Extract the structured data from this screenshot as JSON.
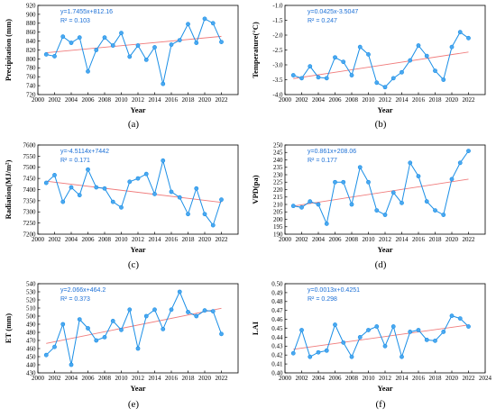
{
  "colors": {
    "series": "#1b8fe6",
    "marker_fill": "#4aa8f0",
    "trend": "#f07c7c",
    "equation": "#1b6fd6"
  },
  "chart_data": [
    {
      "type": "line",
      "panel": "(a)",
      "xlabel": "Year",
      "ylabel": "Precipitation (mm)",
      "xlim": [
        2000,
        2024
      ],
      "ylim": [
        720,
        920
      ],
      "x_ticks": [
        2000,
        2002,
        2004,
        2006,
        2008,
        2010,
        2012,
        2014,
        2016,
        2018,
        2020,
        2022
      ],
      "y_ticks": [
        720,
        740,
        760,
        780,
        800,
        820,
        840,
        860,
        880,
        900,
        920
      ],
      "equation": "y=1.7455x+812.16",
      "r2": "R² = 0.103",
      "trend": {
        "slope": 1.7455,
        "intercept": 812.16
      },
      "x": [
        2001,
        2002,
        2003,
        2004,
        2005,
        2006,
        2007,
        2008,
        2009,
        2010,
        2011,
        2012,
        2013,
        2014,
        2015,
        2016,
        2017,
        2018,
        2019,
        2020,
        2021,
        2022
      ],
      "values": [
        810,
        806,
        850,
        836,
        848,
        772,
        820,
        848,
        830,
        858,
        805,
        830,
        798,
        826,
        744,
        832,
        842,
        878,
        836,
        890,
        880,
        838
      ]
    },
    {
      "type": "line",
      "panel": "(b)",
      "xlabel": "Year",
      "ylabel": "Temperature(°C)",
      "xlim": [
        2000,
        2024
      ],
      "ylim": [
        -4.0,
        -1.0
      ],
      "x_ticks": [
        2000,
        2002,
        2004,
        2006,
        2008,
        2010,
        2012,
        2014,
        2016,
        2018,
        2020,
        2022
      ],
      "y_ticks": [
        -4.0,
        -3.5,
        -3.0,
        -2.5,
        -2.0,
        -1.5,
        -1.0
      ],
      "equation": "y=0.0425x-3.5047",
      "r2": "R² = 0.247",
      "trend": {
        "slope": 0.0425,
        "intercept": -3.5047
      },
      "x": [
        2001,
        2002,
        2003,
        2004,
        2005,
        2006,
        2007,
        2008,
        2009,
        2010,
        2011,
        2012,
        2013,
        2014,
        2015,
        2016,
        2017,
        2018,
        2019,
        2020,
        2021,
        2022
      ],
      "values": [
        -3.35,
        -3.45,
        -3.05,
        -3.42,
        -3.45,
        -2.75,
        -2.9,
        -3.35,
        -2.4,
        -2.65,
        -3.6,
        -3.75,
        -3.45,
        -3.25,
        -2.85,
        -2.35,
        -2.7,
        -3.2,
        -3.5,
        -2.4,
        -1.9,
        -2.1
      ]
    },
    {
      "type": "line",
      "panel": "(c)",
      "xlabel": "Year",
      "ylabel": "Radiation(MJ/m²)",
      "xlim": [
        2000,
        2024
      ],
      "ylim": [
        7200,
        7600
      ],
      "x_ticks": [
        2000,
        2002,
        2004,
        2006,
        2008,
        2010,
        2012,
        2014,
        2016,
        2018,
        2020,
        2022
      ],
      "y_ticks": [
        7200,
        7250,
        7300,
        7350,
        7400,
        7450,
        7500,
        7550,
        7600
      ],
      "equation": "y=-4.5114x+7442",
      "r2": "R² = 0.171",
      "trend": {
        "slope": -4.5114,
        "intercept": 7442
      },
      "x": [
        2001,
        2002,
        2003,
        2004,
        2005,
        2006,
        2007,
        2008,
        2009,
        2010,
        2011,
        2012,
        2013,
        2014,
        2015,
        2016,
        2017,
        2018,
        2019,
        2020,
        2021,
        2022
      ],
      "values": [
        7430,
        7465,
        7345,
        7410,
        7375,
        7490,
        7410,
        7405,
        7345,
        7320,
        7435,
        7450,
        7470,
        7380,
        7530,
        7390,
        7365,
        7290,
        7405,
        7290,
        7240,
        7355
      ]
    },
    {
      "type": "line",
      "panel": "(d)",
      "xlabel": "Year",
      "ylabel": "VPD(pa)",
      "xlim": [
        2000,
        2024
      ],
      "ylim": [
        190,
        250
      ],
      "x_ticks": [
        2000,
        2002,
        2004,
        2006,
        2008,
        2010,
        2012,
        2014,
        2016,
        2018,
        2020,
        2022
      ],
      "y_ticks": [
        190,
        195,
        200,
        205,
        210,
        215,
        220,
        225,
        230,
        235,
        240,
        245,
        250
      ],
      "equation": "y=0.861x+208.06",
      "r2": "R² = 0.177",
      "trend": {
        "slope": 0.861,
        "intercept": 208.06
      },
      "x": [
        2001,
        2002,
        2003,
        2004,
        2005,
        2006,
        2007,
        2008,
        2009,
        2010,
        2011,
        2012,
        2013,
        2014,
        2015,
        2016,
        2017,
        2018,
        2019,
        2020,
        2021,
        2022
      ],
      "values": [
        209,
        208,
        212,
        210,
        197,
        225,
        225,
        210,
        235,
        225,
        206,
        203,
        218,
        211,
        238,
        229,
        212,
        206,
        203,
        227,
        238,
        246
      ]
    },
    {
      "type": "line",
      "panel": "(e)",
      "xlabel": "Year",
      "ylabel": "ET (mm)",
      "xlim": [
        2000,
        2024
      ],
      "ylim": [
        430,
        540
      ],
      "x_ticks": [
        2000,
        2002,
        2004,
        2006,
        2008,
        2010,
        2012,
        2014,
        2016,
        2018,
        2020,
        2022
      ],
      "y_ticks": [
        430,
        440,
        450,
        460,
        470,
        480,
        490,
        500,
        510,
        520,
        530,
        540
      ],
      "equation": "y=2.066x+464.2",
      "r2": "R² = 0.373",
      "trend": {
        "slope": 2.066,
        "intercept": 464.2
      },
      "x": [
        2001,
        2002,
        2003,
        2004,
        2005,
        2006,
        2007,
        2008,
        2009,
        2010,
        2011,
        2012,
        2013,
        2014,
        2015,
        2016,
        2017,
        2018,
        2019,
        2020,
        2021,
        2022
      ],
      "values": [
        452,
        462,
        490,
        440,
        496,
        485,
        470,
        474,
        494,
        483,
        508,
        460,
        500,
        508,
        484,
        508,
        530,
        505,
        500,
        507,
        506,
        478
      ]
    },
    {
      "type": "line",
      "panel": "(f)",
      "xlabel": "Year",
      "ylabel": "LAI",
      "xlim": [
        2000,
        2024
      ],
      "ylim": [
        0.4,
        0.5
      ],
      "x_ticks": [
        2000,
        2002,
        2004,
        2006,
        2008,
        2010,
        2012,
        2014,
        2016,
        2018,
        2020,
        2022,
        2024
      ],
      "y_ticks": [
        0.4,
        0.41,
        0.42,
        0.43,
        0.44,
        0.45,
        0.46,
        0.47,
        0.48,
        0.49,
        0.5
      ],
      "equation": "y=0.0013x+0.4251",
      "r2": "R² = 0.298",
      "trend": {
        "slope": 0.0013,
        "intercept": 0.4251
      },
      "x": [
        2001,
        2002,
        2003,
        2004,
        2005,
        2006,
        2007,
        2008,
        2009,
        2010,
        2011,
        2012,
        2013,
        2014,
        2015,
        2016,
        2017,
        2018,
        2019,
        2020,
        2021,
        2022
      ],
      "values": [
        0.422,
        0.448,
        0.418,
        0.423,
        0.425,
        0.454,
        0.434,
        0.418,
        0.44,
        0.448,
        0.452,
        0.43,
        0.452,
        0.418,
        0.446,
        0.448,
        0.437,
        0.436,
        0.446,
        0.464,
        0.461,
        0.452
      ]
    }
  ]
}
